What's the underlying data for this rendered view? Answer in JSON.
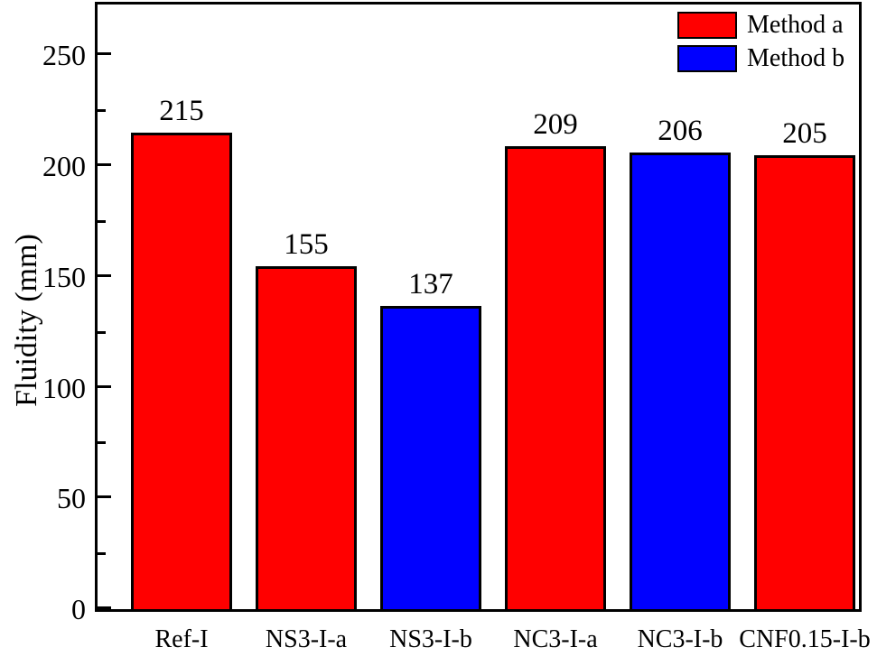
{
  "chart_data": {
    "type": "bar",
    "title": "",
    "xlabel": "",
    "ylabel": "Fluidity (mm)",
    "categories": [
      "Ref-I",
      "NS3-I-a",
      "NS3-I-b",
      "NC3-I-a",
      "NC3-I-b",
      "CNF0.15-I-b"
    ],
    "values": [
      215,
      155,
      137,
      209,
      206,
      205
    ],
    "bar_series": [
      "Method a",
      "Method a",
      "Method b",
      "Method a",
      "Method b",
      "Method a"
    ],
    "bar_colors": [
      "#ff0000",
      "#ff0000",
      "#0000ff",
      "#ff0000",
      "#0000ff",
      "#ff0000"
    ],
    "ylim": [
      0,
      273
    ],
    "yticks": [
      0,
      50,
      100,
      150,
      200,
      250
    ],
    "minor_ytick_interval": 25,
    "grid": false,
    "frame": "full-box",
    "tick_direction": "in",
    "axis_color": "#000000",
    "background_color": "#ffffff",
    "legend": {
      "position": "top-right-inside",
      "entries": [
        {
          "label": "Method a",
          "color": "#ff0000"
        },
        {
          "label": "Method b",
          "color": "#0000ff"
        }
      ]
    }
  }
}
